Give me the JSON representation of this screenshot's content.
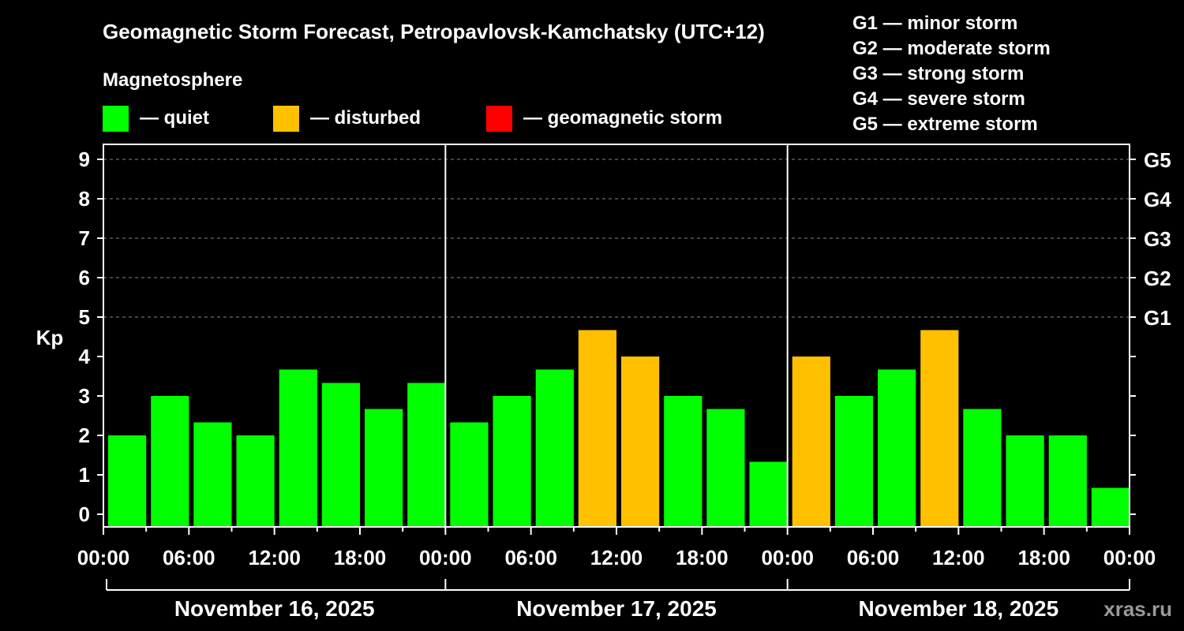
{
  "chart_data": {
    "type": "bar",
    "title": "Geomagnetic Storm Forecast, Petropavlovsk-Kamchatsky (UTC+12)",
    "ylabel": "Kp",
    "ylim": [
      0,
      9.5
    ],
    "y_ticks": [
      "0",
      "1",
      "2",
      "3",
      "4",
      "5",
      "6",
      "7",
      "8",
      "9"
    ],
    "g_scale_ticks": [
      {
        "kp": 5,
        "label": "G1"
      },
      {
        "kp": 6,
        "label": "G2"
      },
      {
        "kp": 7,
        "label": "G3"
      },
      {
        "kp": 8,
        "label": "G4"
      },
      {
        "kp": 9,
        "label": "G5"
      }
    ],
    "grid": "dashed horizontal lines at Kp 5-9",
    "x_tick_labels": [
      "00:00",
      "06:00",
      "12:00",
      "18:00",
      "00:00",
      "06:00",
      "12:00",
      "18:00",
      "00:00",
      "06:00",
      "12:00",
      "18:00",
      "00:00"
    ],
    "days": [
      "November 16, 2025",
      "November 17, 2025",
      "November 18, 2025"
    ],
    "legend": {
      "heading": "Magnetosphere",
      "items": [
        {
          "label": "— quiet",
          "color": "#00ff00"
        },
        {
          "label": "— disturbed",
          "color": "#ffc000"
        },
        {
          "label": "— geomagnetic storm",
          "color": "#ff0000"
        }
      ]
    },
    "g_legend": [
      "G1 — minor storm",
      "G2 — moderate storm",
      "G3 — strong storm",
      "G4 — severe storm",
      "G5 — extreme storm"
    ],
    "bar_colors": {
      "quiet": "#00ff00",
      "disturbed": "#ffc000",
      "storm": "#ff0000"
    },
    "values": [
      2.0,
      3.0,
      2.33,
      2.0,
      3.67,
      3.33,
      2.67,
      3.33,
      2.33,
      3.0,
      3.67,
      4.67,
      4.0,
      3.0,
      2.67,
      1.33,
      4.0,
      3.0,
      3.67,
      4.67,
      2.67,
      2.0,
      2.0,
      0.67
    ]
  },
  "watermark": "xras.ru"
}
